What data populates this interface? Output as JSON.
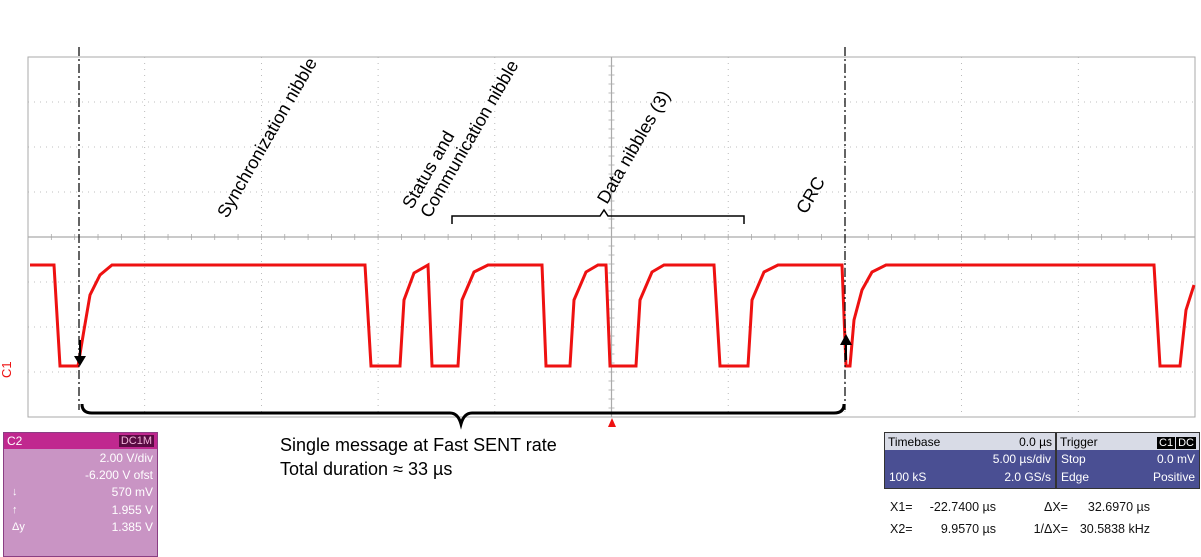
{
  "annotations": {
    "sync": "Synchronization nibble",
    "status_line1": "Status and",
    "status_line2": "Communication nibble",
    "data": "Data nibbles (3)",
    "crc": "CRC",
    "summary_line1": "Single message at Fast SENT rate",
    "summary_line2": "Total duration ≈ 33 µs"
  },
  "trace": {
    "label": "C1",
    "color": "#ee1111"
  },
  "channel_box": {
    "name": "C2",
    "coupling": "DC1M",
    "volts_per_div": "2.00 V/div",
    "offset": "-6.200 V ofst",
    "cursor_down_label": "↓",
    "cursor_down_value": "570 mV",
    "cursor_up_label": "↑",
    "cursor_up_value": "1.955 V",
    "delta_label": "Δy",
    "delta_value": "1.385 V"
  },
  "timebase": {
    "title": "Timebase",
    "delay": "0.0 µs",
    "time_per_div": "5.00 µs/div",
    "samples": "100 kS",
    "rate": "2.0 GS/s"
  },
  "trigger": {
    "title": "Trigger",
    "source_badge": "C1",
    "coupling_badge": "DC",
    "mode": "Stop",
    "level": "0.0 mV",
    "type": "Edge",
    "slope": "Positive"
  },
  "cursors": {
    "x1_label": "X1=",
    "x1_value": "-22.7400 µs",
    "dx_label": "ΔX=",
    "dx_value": "32.6970 µs",
    "x2_label": "X2=",
    "x2_value": "9.9570 µs",
    "inv_dx_label": "1/ΔX=",
    "inv_dx_value": "30.5838 kHz"
  },
  "colors": {
    "trace": "#ee1111",
    "grid": "#aaaaaa",
    "channel_accent": "#c0288f",
    "panel_blue": "#4a4f93"
  }
}
